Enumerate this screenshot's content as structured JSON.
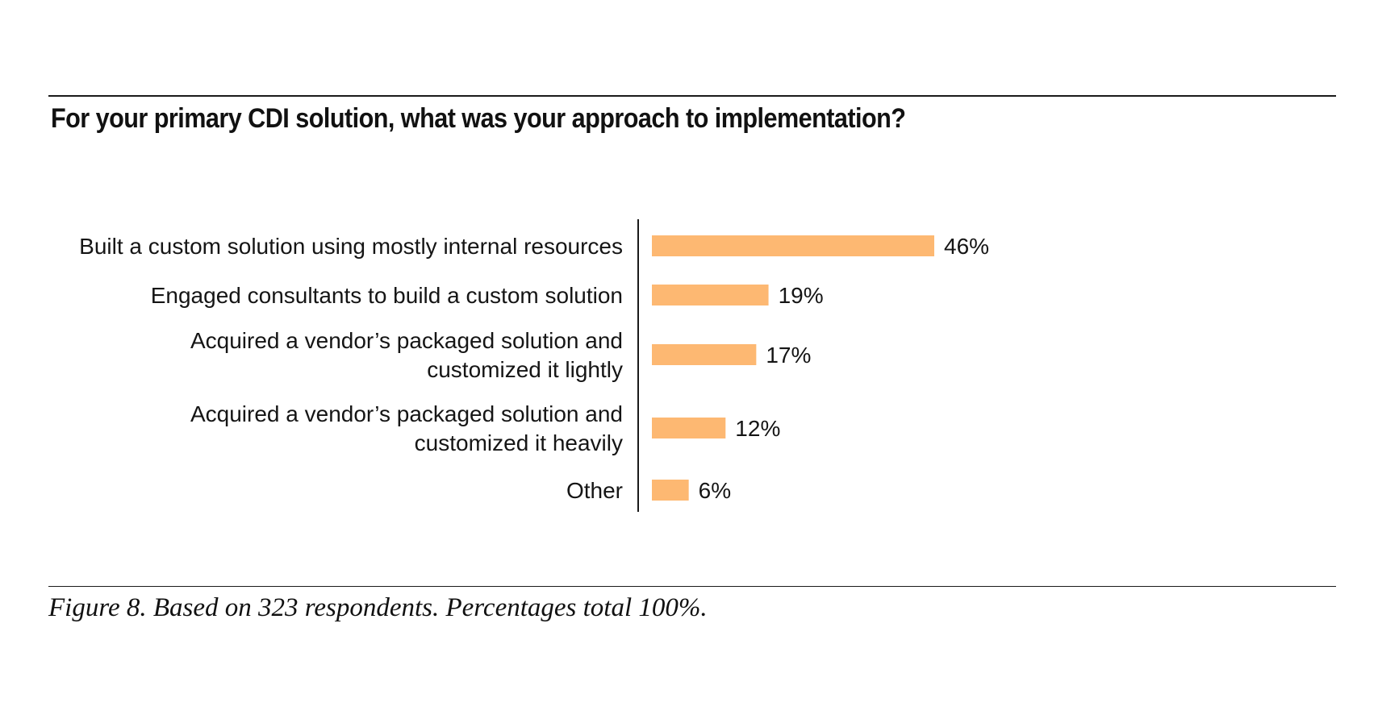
{
  "chart_data": {
    "type": "bar",
    "orientation": "horizontal",
    "title": "For your primary CDI solution, what was your approach to implementation?",
    "categories": [
      [
        "Built a custom solution using mostly internal resources"
      ],
      [
        "Engaged consultants to build a custom solution"
      ],
      [
        "Acquired a vendor’s packaged solution and",
        "customized it lightly"
      ],
      [
        "Acquired a vendor’s packaged solution and",
        "customized it heavily"
      ],
      [
        "Other"
      ]
    ],
    "values": [
      46,
      19,
      17,
      12,
      6
    ],
    "value_labels": [
      "46%",
      "19%",
      "17%",
      "12%",
      "6%"
    ],
    "unit": "%",
    "xlim": [
      0,
      100
    ],
    "grid": false,
    "legend": "none",
    "bar_color": "#FDB872",
    "axis_color": "#1a1a1a"
  },
  "caption": "Figure 8. Based on 323 respondents. Percentages total 100%."
}
